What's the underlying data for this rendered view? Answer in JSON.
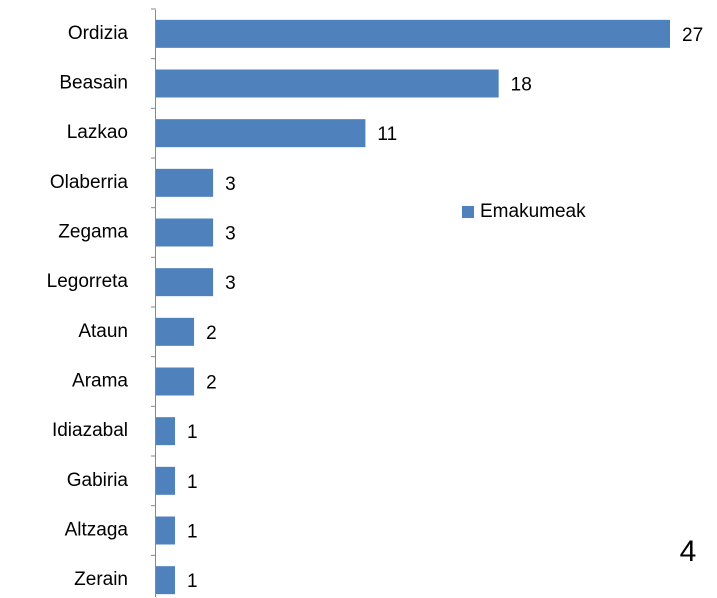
{
  "chart_data": {
    "type": "bar",
    "orientation": "horizontal",
    "categories": [
      "Ordizia",
      "Beasain",
      "Lazkao",
      "Olaberria",
      "Zegama",
      "Legorreta",
      "Ataun",
      "Arama",
      "Idiazabal",
      "Gabiria",
      "Altzaga",
      "Zerain"
    ],
    "series": [
      {
        "name": "Emakumeak",
        "color": "#4f81bd",
        "values": [
          27,
          18,
          11,
          3,
          3,
          3,
          2,
          2,
          1,
          1,
          1,
          1
        ]
      }
    ],
    "legend": "right",
    "annotation": "4"
  }
}
